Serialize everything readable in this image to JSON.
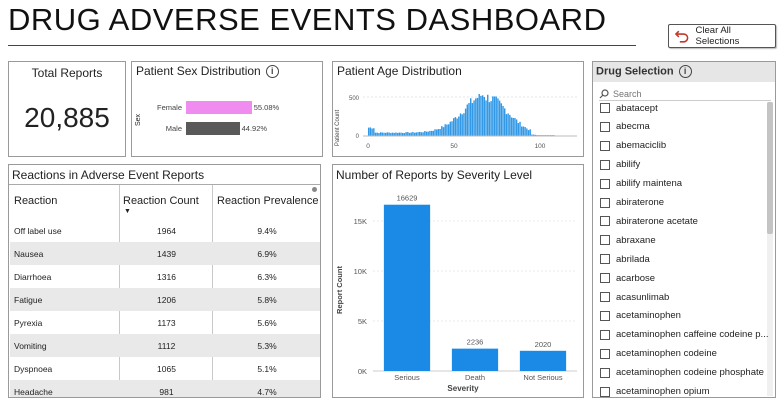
{
  "header": {
    "title": "DRUG ADVERSE EVENTS DASHBOARD",
    "clear_button_label": "Clear All Selections"
  },
  "total_reports": {
    "label": "Total Reports",
    "value": "20,885"
  },
  "sex_distribution": {
    "title": "Patient Sex Distribution",
    "axis_label": "Sex",
    "rows": [
      {
        "label": "Female",
        "value": 55.08,
        "value_label": "55.08%",
        "color": "#f08cf0"
      },
      {
        "label": "Male",
        "value": 44.92,
        "value_label": "44.92%",
        "color": "#595959"
      }
    ]
  },
  "age_distribution": {
    "title": "Patient Age Distribution",
    "y_axis_label": "Patient Count",
    "y_ticks": [
      "0",
      "500"
    ],
    "x_ticks": [
      "0",
      "50",
      "100"
    ],
    "bar_color": "#3399e6"
  },
  "reactions": {
    "title": "Reactions in Adverse Event Reports",
    "columns": [
      "Reaction",
      "Reaction Count",
      "Reaction Prevalence"
    ],
    "rows": [
      {
        "reaction": "Off label use",
        "count": "1964",
        "prevalence": "9.4%"
      },
      {
        "reaction": "Nausea",
        "count": "1439",
        "prevalence": "6.9%"
      },
      {
        "reaction": "Diarrhoea",
        "count": "1316",
        "prevalence": "6.3%"
      },
      {
        "reaction": "Fatigue",
        "count": "1206",
        "prevalence": "5.8%"
      },
      {
        "reaction": "Pyrexia",
        "count": "1173",
        "prevalence": "5.6%"
      },
      {
        "reaction": "Vomiting",
        "count": "1112",
        "prevalence": "5.3%"
      },
      {
        "reaction": "Dyspnoea",
        "count": "1065",
        "prevalence": "5.1%"
      },
      {
        "reaction": "Headache",
        "count": "981",
        "prevalence": "4.7%"
      }
    ]
  },
  "chart_data": {
    "type": "bar",
    "title": "Number of Reports by Severity Level",
    "xlabel": "Severity",
    "ylabel": "Report Count",
    "categories": [
      "Serious",
      "Death",
      "Not Serious"
    ],
    "values": [
      16629,
      2236,
      2020
    ],
    "value_labels": [
      "16629",
      "2236",
      "2020"
    ],
    "y_ticks": [
      0,
      5000,
      10000,
      15000
    ],
    "y_tick_labels": [
      "0K",
      "5K",
      "10K",
      "15K"
    ],
    "ylim": [
      0,
      18000
    ],
    "bar_color": "#1a8ae6"
  },
  "drug_selection": {
    "title": "Drug Selection",
    "search_placeholder": "Search",
    "items": [
      "abatacept",
      "abecma",
      "abemaciclib",
      "abilify",
      "abilify maintena",
      "abiraterone",
      "abiraterone acetate",
      "abraxane",
      "abrilada",
      "acarbose",
      "acasunlimab",
      "acetaminophen",
      "acetaminophen caffeine codeine p...",
      "acetaminophen codeine",
      "acetaminophen codeine phosphate",
      "acetaminophen opium"
    ]
  }
}
